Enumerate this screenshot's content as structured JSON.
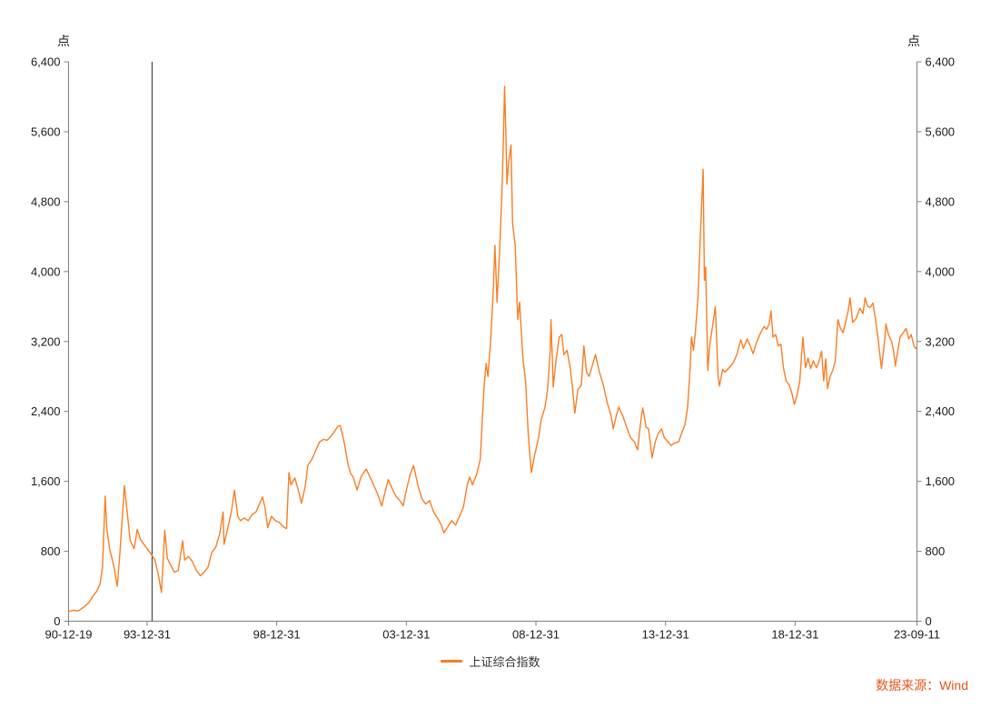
{
  "units": {
    "left": "点",
    "right": "点"
  },
  "legend": {
    "label": "上证综合指数"
  },
  "source_label": "数据来源：Wind",
  "colors": {
    "line": "#F97E23",
    "source": "#E8541D",
    "axis": "#808080",
    "tick_text": "#1a1a1a",
    "vline": "#2b2b2b",
    "background": "#ffffff"
  },
  "chart_data": {
    "type": "line",
    "title": "",
    "xlabel": "",
    "ylabel": "点",
    "ylim": [
      0,
      6400
    ],
    "y_tick_interval": 800,
    "y_tick_values": [
      0,
      800,
      1600,
      2400,
      3200,
      4000,
      4800,
      5600,
      6400
    ],
    "y_tick_labels": [
      "0",
      "800",
      "1,600",
      "2,400",
      "3,200",
      "4,000",
      "4,800",
      "5,600",
      "6,400"
    ],
    "x_domain": [
      1990.97,
      2023.7
    ],
    "x_tick_labels": [
      "90-12-19",
      "93-12-31",
      "98-12-31",
      "03-12-31",
      "08-12-31",
      "13-12-31",
      "18-12-31",
      "23-09-11"
    ],
    "x_tick_years": [
      1990.97,
      1994.0,
      1999.0,
      2004.0,
      2009.0,
      2014.0,
      2019.0,
      2023.7
    ],
    "grid": false,
    "legend_position": "bottom",
    "dual_y_axis": true,
    "annotations": [
      {
        "type": "vline",
        "x": 1994.19,
        "color": "#2b2b2b"
      }
    ],
    "series": [
      {
        "name": "上证综合指数",
        "points": [
          [
            1990.97,
            110
          ],
          [
            1991.15,
            125
          ],
          [
            1991.35,
            118
          ],
          [
            1991.55,
            160
          ],
          [
            1991.75,
            210
          ],
          [
            1991.92,
            292
          ],
          [
            1992.05,
            340
          ],
          [
            1992.18,
            420
          ],
          [
            1992.28,
            620
          ],
          [
            1992.38,
            1430
          ],
          [
            1992.45,
            1050
          ],
          [
            1992.55,
            830
          ],
          [
            1992.7,
            650
          ],
          [
            1992.85,
            400
          ],
          [
            1992.95,
            780
          ],
          [
            1993.05,
            1220
          ],
          [
            1993.12,
            1550
          ],
          [
            1993.22,
            1280
          ],
          [
            1993.35,
            920
          ],
          [
            1993.5,
            830
          ],
          [
            1993.62,
            1050
          ],
          [
            1993.75,
            930
          ],
          [
            1993.9,
            870
          ],
          [
            1994.0,
            830
          ],
          [
            1994.15,
            770
          ],
          [
            1994.3,
            700
          ],
          [
            1994.42,
            550
          ],
          [
            1994.55,
            330
          ],
          [
            1994.68,
            1040
          ],
          [
            1994.78,
            720
          ],
          [
            1994.9,
            650
          ],
          [
            1995.05,
            560
          ],
          [
            1995.2,
            580
          ],
          [
            1995.37,
            920
          ],
          [
            1995.45,
            700
          ],
          [
            1995.6,
            740
          ],
          [
            1995.75,
            680
          ],
          [
            1995.9,
            580
          ],
          [
            1996.05,
            520
          ],
          [
            1996.2,
            560
          ],
          [
            1996.35,
            620
          ],
          [
            1996.5,
            790
          ],
          [
            1996.65,
            850
          ],
          [
            1996.8,
            1000
          ],
          [
            1996.93,
            1250
          ],
          [
            1996.97,
            880
          ],
          [
            1997.1,
            1050
          ],
          [
            1997.25,
            1250
          ],
          [
            1997.37,
            1500
          ],
          [
            1997.5,
            1200
          ],
          [
            1997.6,
            1150
          ],
          [
            1997.75,
            1180
          ],
          [
            1997.9,
            1150
          ],
          [
            1998.05,
            1220
          ],
          [
            1998.2,
            1250
          ],
          [
            1998.35,
            1350
          ],
          [
            1998.45,
            1420
          ],
          [
            1998.55,
            1300
          ],
          [
            1998.65,
            1070
          ],
          [
            1998.8,
            1200
          ],
          [
            1998.95,
            1150
          ],
          [
            1999.1,
            1130
          ],
          [
            1999.25,
            1080
          ],
          [
            1999.38,
            1060
          ],
          [
            1999.47,
            1700
          ],
          [
            1999.55,
            1560
          ],
          [
            1999.7,
            1640
          ],
          [
            1999.85,
            1480
          ],
          [
            1999.95,
            1350
          ],
          [
            2000.1,
            1540
          ],
          [
            2000.2,
            1780
          ],
          [
            2000.35,
            1850
          ],
          [
            2000.5,
            1950
          ],
          [
            2000.65,
            2050
          ],
          [
            2000.8,
            2080
          ],
          [
            2000.95,
            2070
          ],
          [
            2001.1,
            2120
          ],
          [
            2001.25,
            2180
          ],
          [
            2001.45,
            2240
          ],
          [
            2001.6,
            2050
          ],
          [
            2001.75,
            1800
          ],
          [
            2001.85,
            1690
          ],
          [
            2001.95,
            1650
          ],
          [
            2002.1,
            1500
          ],
          [
            2002.25,
            1650
          ],
          [
            2002.45,
            1740
          ],
          [
            2002.6,
            1650
          ],
          [
            2002.75,
            1550
          ],
          [
            2002.9,
            1450
          ],
          [
            2003.05,
            1320
          ],
          [
            2003.2,
            1500
          ],
          [
            2003.3,
            1620
          ],
          [
            2003.45,
            1520
          ],
          [
            2003.6,
            1430
          ],
          [
            2003.75,
            1380
          ],
          [
            2003.88,
            1320
          ],
          [
            2004.0,
            1500
          ],
          [
            2004.15,
            1680
          ],
          [
            2004.28,
            1780
          ],
          [
            2004.45,
            1550
          ],
          [
            2004.6,
            1400
          ],
          [
            2004.75,
            1340
          ],
          [
            2004.9,
            1380
          ],
          [
            2005.05,
            1250
          ],
          [
            2005.2,
            1180
          ],
          [
            2005.35,
            1100
          ],
          [
            2005.45,
            1010
          ],
          [
            2005.6,
            1080
          ],
          [
            2005.75,
            1150
          ],
          [
            2005.9,
            1100
          ],
          [
            2006.05,
            1200
          ],
          [
            2006.2,
            1300
          ],
          [
            2006.35,
            1560
          ],
          [
            2006.45,
            1650
          ],
          [
            2006.55,
            1560
          ],
          [
            2006.7,
            1670
          ],
          [
            2006.85,
            1850
          ],
          [
            2007.0,
            2680
          ],
          [
            2007.08,
            2950
          ],
          [
            2007.15,
            2800
          ],
          [
            2007.25,
            3200
          ],
          [
            2007.35,
            3750
          ],
          [
            2007.42,
            4300
          ],
          [
            2007.5,
            3650
          ],
          [
            2007.6,
            4250
          ],
          [
            2007.7,
            5000
          ],
          [
            2007.75,
            5550
          ],
          [
            2007.79,
            6120
          ],
          [
            2007.84,
            5600
          ],
          [
            2007.88,
            5000
          ],
          [
            2007.95,
            5250
          ],
          [
            2008.04,
            5450
          ],
          [
            2008.1,
            4550
          ],
          [
            2008.2,
            4300
          ],
          [
            2008.3,
            3450
          ],
          [
            2008.37,
            3650
          ],
          [
            2008.5,
            3000
          ],
          [
            2008.6,
            2750
          ],
          [
            2008.7,
            2150
          ],
          [
            2008.82,
            1700
          ],
          [
            2008.95,
            1900
          ],
          [
            2009.1,
            2100
          ],
          [
            2009.2,
            2300
          ],
          [
            2009.35,
            2450
          ],
          [
            2009.45,
            2650
          ],
          [
            2009.55,
            3100
          ],
          [
            2009.58,
            3450
          ],
          [
            2009.67,
            2680
          ],
          [
            2009.78,
            3000
          ],
          [
            2009.9,
            3250
          ],
          [
            2010.0,
            3280
          ],
          [
            2010.08,
            3050
          ],
          [
            2010.2,
            3100
          ],
          [
            2010.32,
            2900
          ],
          [
            2010.5,
            2380
          ],
          [
            2010.62,
            2650
          ],
          [
            2010.75,
            2700
          ],
          [
            2010.85,
            3150
          ],
          [
            2010.95,
            2850
          ],
          [
            2011.05,
            2800
          ],
          [
            2011.2,
            2950
          ],
          [
            2011.3,
            3050
          ],
          [
            2011.45,
            2850
          ],
          [
            2011.6,
            2700
          ],
          [
            2011.75,
            2500
          ],
          [
            2011.9,
            2350
          ],
          [
            2011.98,
            2200
          ],
          [
            2012.1,
            2350
          ],
          [
            2012.2,
            2450
          ],
          [
            2012.35,
            2350
          ],
          [
            2012.5,
            2220
          ],
          [
            2012.65,
            2100
          ],
          [
            2012.8,
            2050
          ],
          [
            2012.92,
            1960
          ],
          [
            2013.05,
            2300
          ],
          [
            2013.12,
            2440
          ],
          [
            2013.25,
            2220
          ],
          [
            2013.35,
            2200
          ],
          [
            2013.48,
            1870
          ],
          [
            2013.6,
            2050
          ],
          [
            2013.72,
            2150
          ],
          [
            2013.85,
            2200
          ],
          [
            2013.95,
            2100
          ],
          [
            2014.1,
            2050
          ],
          [
            2014.22,
            2010
          ],
          [
            2014.35,
            2040
          ],
          [
            2014.5,
            2050
          ],
          [
            2014.62,
            2150
          ],
          [
            2014.75,
            2250
          ],
          [
            2014.85,
            2450
          ],
          [
            2014.95,
            2900
          ],
          [
            2015.0,
            3250
          ],
          [
            2015.08,
            3100
          ],
          [
            2015.15,
            3300
          ],
          [
            2015.25,
            3700
          ],
          [
            2015.35,
            4450
          ],
          [
            2015.45,
            5170
          ],
          [
            2015.5,
            3900
          ],
          [
            2015.55,
            4050
          ],
          [
            2015.63,
            2870
          ],
          [
            2015.7,
            3150
          ],
          [
            2015.8,
            3350
          ],
          [
            2015.92,
            3600
          ],
          [
            2016.03,
            2800
          ],
          [
            2016.08,
            2690
          ],
          [
            2016.2,
            2880
          ],
          [
            2016.3,
            2850
          ],
          [
            2016.45,
            2900
          ],
          [
            2016.6,
            2950
          ],
          [
            2016.75,
            3050
          ],
          [
            2016.9,
            3220
          ],
          [
            2017.0,
            3120
          ],
          [
            2017.15,
            3230
          ],
          [
            2017.28,
            3140
          ],
          [
            2017.38,
            3060
          ],
          [
            2017.5,
            3180
          ],
          [
            2017.65,
            3290
          ],
          [
            2017.8,
            3370
          ],
          [
            2017.9,
            3340
          ],
          [
            2018.0,
            3400
          ],
          [
            2018.07,
            3550
          ],
          [
            2018.15,
            3250
          ],
          [
            2018.25,
            3280
          ],
          [
            2018.35,
            3150
          ],
          [
            2018.45,
            3170
          ],
          [
            2018.55,
            2900
          ],
          [
            2018.65,
            2750
          ],
          [
            2018.78,
            2700
          ],
          [
            2018.88,
            2600
          ],
          [
            2018.97,
            2480
          ],
          [
            2019.07,
            2580
          ],
          [
            2019.18,
            2750
          ],
          [
            2019.3,
            3250
          ],
          [
            2019.4,
            2900
          ],
          [
            2019.5,
            3010
          ],
          [
            2019.6,
            2890
          ],
          [
            2019.7,
            2980
          ],
          [
            2019.82,
            2900
          ],
          [
            2019.92,
            2970
          ],
          [
            2020.02,
            3090
          ],
          [
            2020.1,
            2750
          ],
          [
            2020.18,
            3000
          ],
          [
            2020.25,
            2660
          ],
          [
            2020.35,
            2800
          ],
          [
            2020.45,
            2870
          ],
          [
            2020.55,
            2980
          ],
          [
            2020.65,
            3450
          ],
          [
            2020.75,
            3350
          ],
          [
            2020.85,
            3300
          ],
          [
            2020.95,
            3420
          ],
          [
            2021.05,
            3560
          ],
          [
            2021.12,
            3700
          ],
          [
            2021.22,
            3420
          ],
          [
            2021.35,
            3460
          ],
          [
            2021.5,
            3580
          ],
          [
            2021.62,
            3520
          ],
          [
            2021.7,
            3700
          ],
          [
            2021.8,
            3600
          ],
          [
            2021.9,
            3590
          ],
          [
            2022.0,
            3640
          ],
          [
            2022.1,
            3460
          ],
          [
            2022.2,
            3230
          ],
          [
            2022.33,
            2890
          ],
          [
            2022.45,
            3200
          ],
          [
            2022.5,
            3400
          ],
          [
            2022.6,
            3280
          ],
          [
            2022.72,
            3200
          ],
          [
            2022.8,
            3090
          ],
          [
            2022.87,
            2920
          ],
          [
            2022.95,
            3080
          ],
          [
            2023.05,
            3250
          ],
          [
            2023.15,
            3290
          ],
          [
            2023.28,
            3350
          ],
          [
            2023.38,
            3230
          ],
          [
            2023.48,
            3280
          ],
          [
            2023.58,
            3150
          ],
          [
            2023.65,
            3120
          ],
          [
            2023.7,
            3140
          ]
        ]
      }
    ]
  }
}
